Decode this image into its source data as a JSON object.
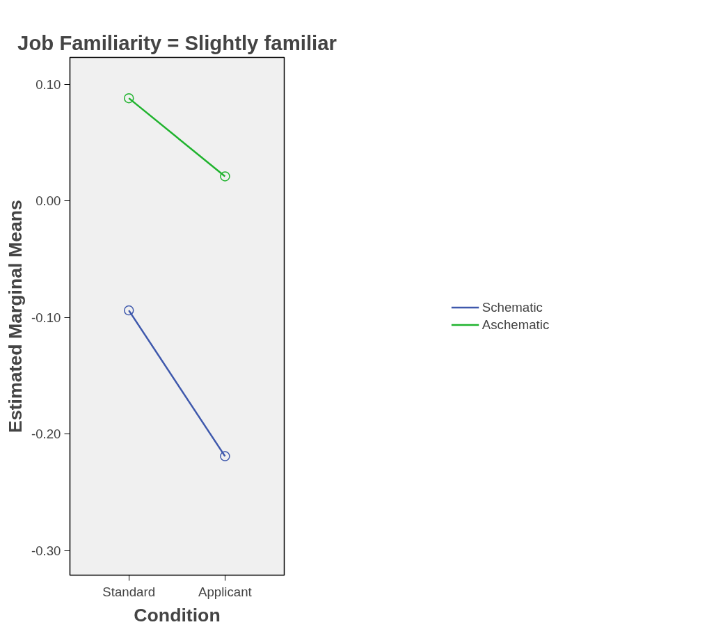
{
  "chart_data": {
    "type": "line",
    "title": "Job Familiarity = Slightly familiar",
    "xlabel": "Condition",
    "ylabel": "Estimated Marginal Means",
    "categories": [
      "Standard",
      "Applicant"
    ],
    "series": [
      {
        "name": "Schematic",
        "color": "#3e58ac",
        "values": [
          -0.094,
          -0.219
        ]
      },
      {
        "name": "Aschematic",
        "color": "#1fb32d",
        "values": [
          0.088,
          0.021
        ]
      }
    ],
    "ylim": [
      -0.321,
      0.123
    ],
    "yticks": [
      {
        "value": -0.3,
        "label": "-0.30"
      },
      {
        "value": -0.2,
        "label": "-0.20"
      },
      {
        "value": -0.1,
        "label": "-0.10"
      },
      {
        "value": 0,
        "label": "0.00"
      },
      {
        "value": 0.1,
        "label": "0.10"
      }
    ],
    "marker": "circle",
    "line_style": "solid",
    "grid": false,
    "legend": "right"
  }
}
